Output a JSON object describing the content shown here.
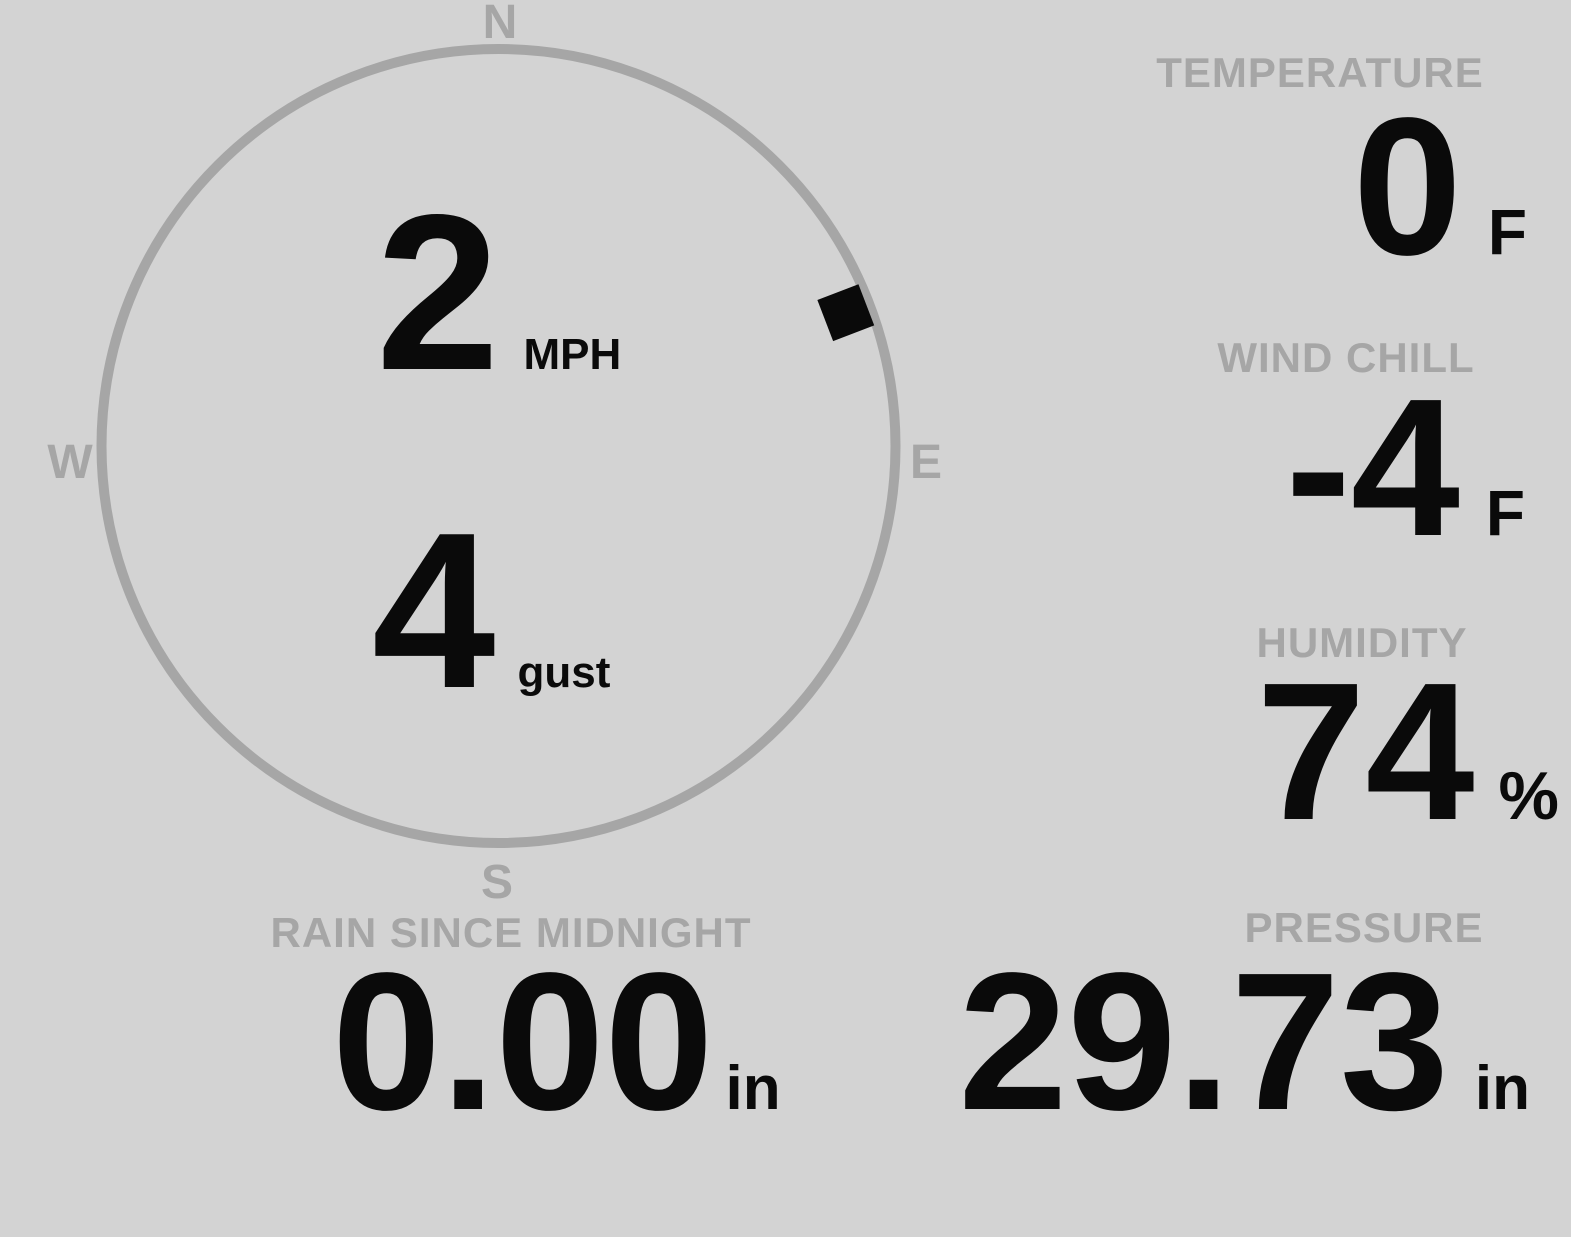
{
  "theme": {
    "background": "#d3d3d3",
    "muted_gray": "#a6a6a6",
    "ink_black": "#0a0a0a"
  },
  "wind": {
    "speed": "2",
    "speed_unit": "MPH",
    "gust": "4",
    "gust_unit": "gust",
    "direction_degrees": 69,
    "compass": {
      "north": "N",
      "east": "E",
      "south": "S",
      "west": "W"
    }
  },
  "metrics": {
    "temperature": {
      "label": "TEMPERATURE",
      "value": "0",
      "unit": "F"
    },
    "wind_chill": {
      "label": "WIND CHILL",
      "value": "-4",
      "unit": "F"
    },
    "humidity": {
      "label": "HUMIDITY",
      "value": "74",
      "unit": "%"
    },
    "rain": {
      "label": "RAIN SINCE MIDNIGHT",
      "value": "0.00",
      "unit": "in"
    },
    "pressure": {
      "label": "PRESSURE",
      "value": "29.73",
      "unit": "in"
    }
  }
}
